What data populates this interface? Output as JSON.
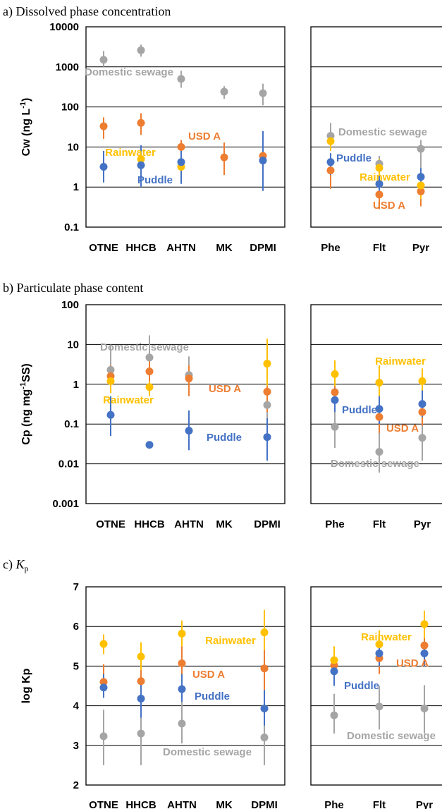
{
  "colors": {
    "Domestic sewage": "#a5a5a5",
    "USD A": "#ed7d31",
    "Rainwater": "#ffc000",
    "Puddle": "#4472c4"
  },
  "chart_data": [
    {
      "id": "a",
      "type": "scatter",
      "title": "a) Dissolved phase concentration",
      "ylabel": "Cw (ng L-1)",
      "ylabel_parts": [
        "Cw (ng L",
        "-1",
        ")"
      ],
      "scale": "log",
      "ylim": [
        0.1,
        10000
      ],
      "yticks": [
        "0.1",
        "1",
        "10",
        "100",
        "1000",
        "10000"
      ],
      "gridlines": [
        1,
        10,
        100,
        1000
      ],
      "groups": [
        {
          "categories": [
            "OTNE",
            "HHCB",
            "AHTN",
            "MK",
            "DPMI"
          ],
          "series": [
            {
              "name": "Domestic sewage",
              "values": [
                1500,
                2600,
                500,
                240,
                220
              ],
              "low": [
                1000,
                1800,
                300,
                160,
                110
              ],
              "high": [
                2500,
                3600,
                800,
                330,
                380
              ]
            },
            {
              "name": "USD A",
              "values": [
                33,
                40,
                10,
                5.5,
                6
              ],
              "low": [
                16,
                20,
                4,
                2,
                1.2
              ],
              "high": [
                55,
                70,
                15,
                13,
                13
              ]
            },
            {
              "name": "Rainwater",
              "values": [
                null,
                5,
                3.2,
                null,
                null
              ],
              "low": [
                null,
                3.5,
                2,
                null,
                null
              ],
              "high": [
                null,
                8,
                5,
                null,
                null
              ]
            },
            {
              "name": "Puddle",
              "values": [
                3.2,
                3.5,
                4.2,
                null,
                4.6
              ],
              "low": [
                1.3,
                1,
                1.2,
                null,
                0.8
              ],
              "high": [
                8,
                11,
                8,
                null,
                25
              ]
            }
          ],
          "labels": [
            "Domestic sewage",
            "Rainwater",
            "USD A",
            "Puddle"
          ]
        },
        {
          "categories": [
            "Phe",
            "Flt",
            "Pyr"
          ],
          "series": [
            {
              "name": "Domestic sewage",
              "values": [
                19,
                3.8,
                9
              ],
              "low": [
                10,
                1.5,
                3
              ],
              "high": [
                40,
                6,
                15
              ]
            },
            {
              "name": "USD A",
              "values": [
                2.6,
                0.65,
                0.78
              ],
              "low": [
                0.9,
                0.28,
                0.33
              ],
              "high": [
                5,
                1,
                1.5
              ]
            },
            {
              "name": "Rainwater",
              "values": [
                14,
                3,
                1.1
              ],
              "low": [
                8,
                1.5,
                0.5
              ],
              "high": [
                22,
                5,
                2
              ]
            },
            {
              "name": "Puddle",
              "values": [
                4.2,
                1.2,
                1.8
              ],
              "low": [
                2,
                0.8,
                0.9
              ],
              "high": [
                7,
                2,
                3
              ]
            }
          ],
          "labels": [
            "Domestic sewage",
            "Puddle",
            "Rainwater",
            "USD A"
          ]
        }
      ]
    },
    {
      "id": "b",
      "type": "scatter",
      "title": "b) Particulate phase content",
      "ylabel": "Cp (ng mg-1SS)",
      "ylabel_parts": [
        "Cp (ng mg",
        "-1",
        "SS)"
      ],
      "scale": "log",
      "ylim": [
        0.001,
        100
      ],
      "yticks": [
        "0.001",
        "0.01",
        "0.1",
        "1",
        "10",
        "100"
      ],
      "gridlines": [
        0.01,
        0.1,
        1,
        10
      ],
      "groups": [
        {
          "categories": [
            "OTNE",
            "HHCB",
            "AHTN",
            "MK",
            "DPMI"
          ],
          "series": [
            {
              "name": "Domestic sewage",
              "values": [
                2.3,
                4.7,
                1.7,
                null,
                0.3
              ],
              "low": [
                0.8,
                1.2,
                0.8,
                null,
                0.02
              ],
              "high": [
                10,
                17,
                5,
                null,
                1.5
              ]
            },
            {
              "name": "USD A",
              "values": [
                1.6,
                2.1,
                1.4,
                null,
                0.65
              ],
              "low": [
                0.8,
                1,
                0.5,
                null,
                0.2
              ],
              "high": [
                3,
                5,
                3,
                null,
                1.5
              ]
            },
            {
              "name": "Rainwater",
              "values": [
                1.2,
                0.85,
                null,
                null,
                3.3
              ],
              "low": [
                0.6,
                0.5,
                null,
                null,
                0.9
              ],
              "high": [
                2,
                1.2,
                null,
                null,
                14
              ]
            },
            {
              "name": "Puddle",
              "values": [
                0.17,
                0.03,
                0.068,
                null,
                0.047
              ],
              "low": [
                0.05,
                null,
                0.022,
                null,
                0.012
              ],
              "high": [
                0.5,
                null,
                0.22,
                null,
                0.14
              ]
            }
          ],
          "labels": [
            "Domestic sewage",
            "USD A",
            "Rainwater",
            "Puddle"
          ]
        },
        {
          "categories": [
            "Phe",
            "Flt",
            "Pyr"
          ],
          "series": [
            {
              "name": "Domestic sewage",
              "values": [
                0.085,
                0.02,
                0.045
              ],
              "low": [
                0.025,
                0.006,
                0.012
              ],
              "high": [
                0.3,
                0.07,
                0.15
              ]
            },
            {
              "name": "USD A",
              "values": [
                0.63,
                0.15,
                0.2
              ],
              "low": [
                0.3,
                0.06,
                0.09
              ],
              "high": [
                1.2,
                0.4,
                0.5
              ]
            },
            {
              "name": "Rainwater",
              "values": [
                1.8,
                1.1,
                1.2
              ],
              "low": [
                0.9,
                0.3,
                0.5
              ],
              "high": [
                4,
                3,
                2.5
              ]
            },
            {
              "name": "Puddle",
              "values": [
                0.4,
                0.24,
                0.32
              ],
              "low": [
                0.2,
                0.1,
                0.15
              ],
              "high": [
                0.8,
                0.5,
                0.7
              ]
            }
          ],
          "labels": [
            "Rainwater",
            "Puddle",
            "USD A",
            "Domestic sewage"
          ]
        }
      ]
    },
    {
      "id": "c",
      "type": "scatter",
      "title": "c) Kp",
      "title_parts": [
        "c) ",
        "K",
        "p"
      ],
      "ylabel": "log Kp",
      "scale": "linear",
      "ylim": [
        2,
        7
      ],
      "yticks": [
        "2",
        "3",
        "4",
        "5",
        "6",
        "7"
      ],
      "gridlines": [
        3,
        4,
        5,
        6
      ],
      "groups": [
        {
          "categories": [
            "OTNE",
            "HHCB",
            "AHTN",
            "MK",
            "DPMI"
          ],
          "series": [
            {
              "name": "Domestic sewage",
              "values": [
                3.23,
                3.3,
                3.55,
                null,
                3.2
              ],
              "low": [
                2.5,
                2.5,
                3.05,
                null,
                2.5
              ],
              "high": [
                3.9,
                4.0,
                4.4,
                null,
                3.8
              ]
            },
            {
              "name": "USD A",
              "values": [
                4.6,
                4.62,
                5.07,
                null,
                4.94
              ],
              "low": [
                4.3,
                4.0,
                4.6,
                null,
                4.2
              ],
              "high": [
                5.05,
                4.9,
                5.5,
                null,
                5.9
              ]
            },
            {
              "name": "Rainwater",
              "values": [
                5.56,
                5.24,
                5.82,
                null,
                5.85
              ],
              "low": [
                5.3,
                4.9,
                5.5,
                null,
                5.4
              ],
              "high": [
                5.8,
                5.6,
                6.15,
                null,
                6.42
              ]
            },
            {
              "name": "Puddle",
              "values": [
                4.46,
                4.18,
                4.42,
                null,
                3.93
              ],
              "low": [
                4.2,
                3.7,
                4.1,
                null,
                3.5
              ],
              "high": [
                4.8,
                4.6,
                4.8,
                null,
                4.4
              ]
            }
          ],
          "labels": [
            "Rainwater",
            "USD A",
            "Puddle",
            "Domestic sewage"
          ]
        },
        {
          "categories": [
            "Phe",
            "Flt",
            "Pyr"
          ],
          "series": [
            {
              "name": "Domestic sewage",
              "values": [
                3.76,
                3.98,
                3.93
              ],
              "low": [
                3.3,
                3.4,
                3.3
              ],
              "high": [
                4.3,
                4.5,
                4.52
              ]
            },
            {
              "name": "USD A",
              "values": [
                5.02,
                5.2,
                5.52
              ],
              "low": [
                4.7,
                4.8,
                5.1
              ],
              "high": [
                5.3,
                5.5,
                5.9
              ]
            },
            {
              "name": "Rainwater",
              "values": [
                5.15,
                5.55,
                6.06
              ],
              "low": [
                4.9,
                5.2,
                5.7
              ],
              "high": [
                5.5,
                5.9,
                6.4
              ]
            },
            {
              "name": "Puddle",
              "values": [
                4.87,
                5.32,
                5.32
              ],
              "low": [
                4.5,
                5.0,
                5.0
              ],
              "high": [
                5.2,
                5.6,
                5.6
              ]
            }
          ],
          "labels": [
            "Rainwater",
            "USD A",
            "Puddle",
            "Domestic sewage"
          ]
        }
      ]
    }
  ]
}
